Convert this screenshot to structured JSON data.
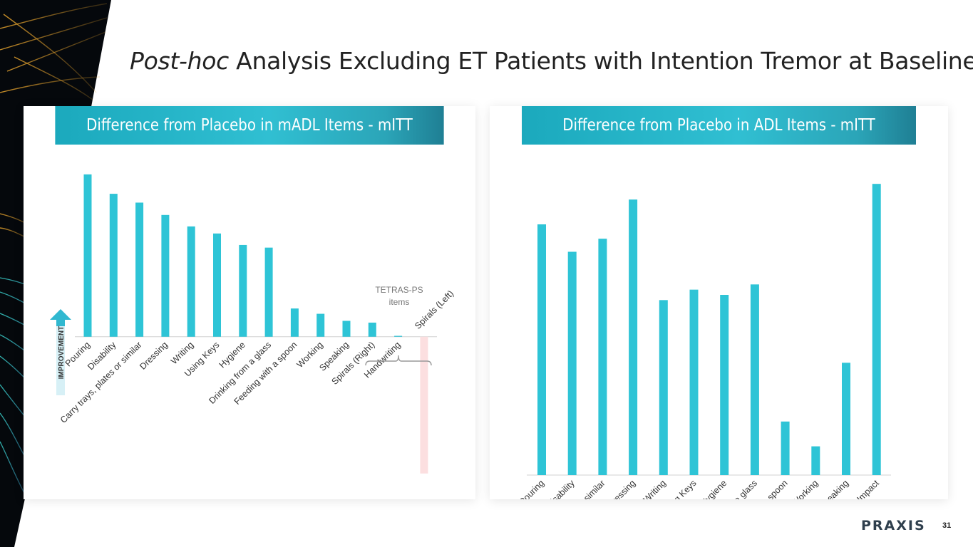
{
  "title": {
    "italic": "Post-hoc",
    "rest": " Analysis Excluding ET Patients with Intention Tremor at Baseline"
  },
  "colors": {
    "bar": "#2ec4d6",
    "negative_bar": "#fcdfe0",
    "header": "#2fb9cc",
    "arrow": "#30b8d0"
  },
  "chart_data": [
    {
      "type": "bar",
      "title": "Difference from Placebo in mADL Items - mITT",
      "ylabel": "IMPROVEMENT",
      "bracket_label": "TETRAS-PS items",
      "categories": [
        "Pouring",
        "Disability",
        "Carry trays, plates or similar",
        "Dressing",
        "Writing",
        "Using Keys",
        "Hygiene",
        "Drinking from a glass",
        "Feeding with a spoon",
        "Working",
        "Speaking",
        "Spirals (Right)",
        "Handwriting",
        "Spirals (Left)"
      ],
      "values": [
        0.184,
        0.162,
        0.152,
        0.138,
        0.125,
        0.117,
        0.104,
        0.101,
        0.032,
        0.026,
        0.018,
        0.016,
        0.001,
        -0.155
      ],
      "ylim": [
        -0.16,
        0.2
      ]
    },
    {
      "type": "bar",
      "title": "Difference from Placebo in ADL Items - mITT",
      "categories": [
        "Pouring",
        "Disability",
        "Carry trays, plates or similar",
        "Dressing",
        "Writing",
        "Using Keys",
        "Hygiene",
        "Drinking from a glass",
        "Feeding with a spoon",
        "Working",
        "Speaking",
        "Social Impact"
      ],
      "values": [
        0.192,
        0.171,
        0.181,
        0.211,
        0.134,
        0.142,
        0.138,
        0.146,
        0.041,
        0.022,
        0.086,
        0.223
      ],
      "ylim": [
        0,
        0.24
      ]
    }
  ],
  "footer": {
    "logo": "PRAXIS",
    "page": "31"
  }
}
